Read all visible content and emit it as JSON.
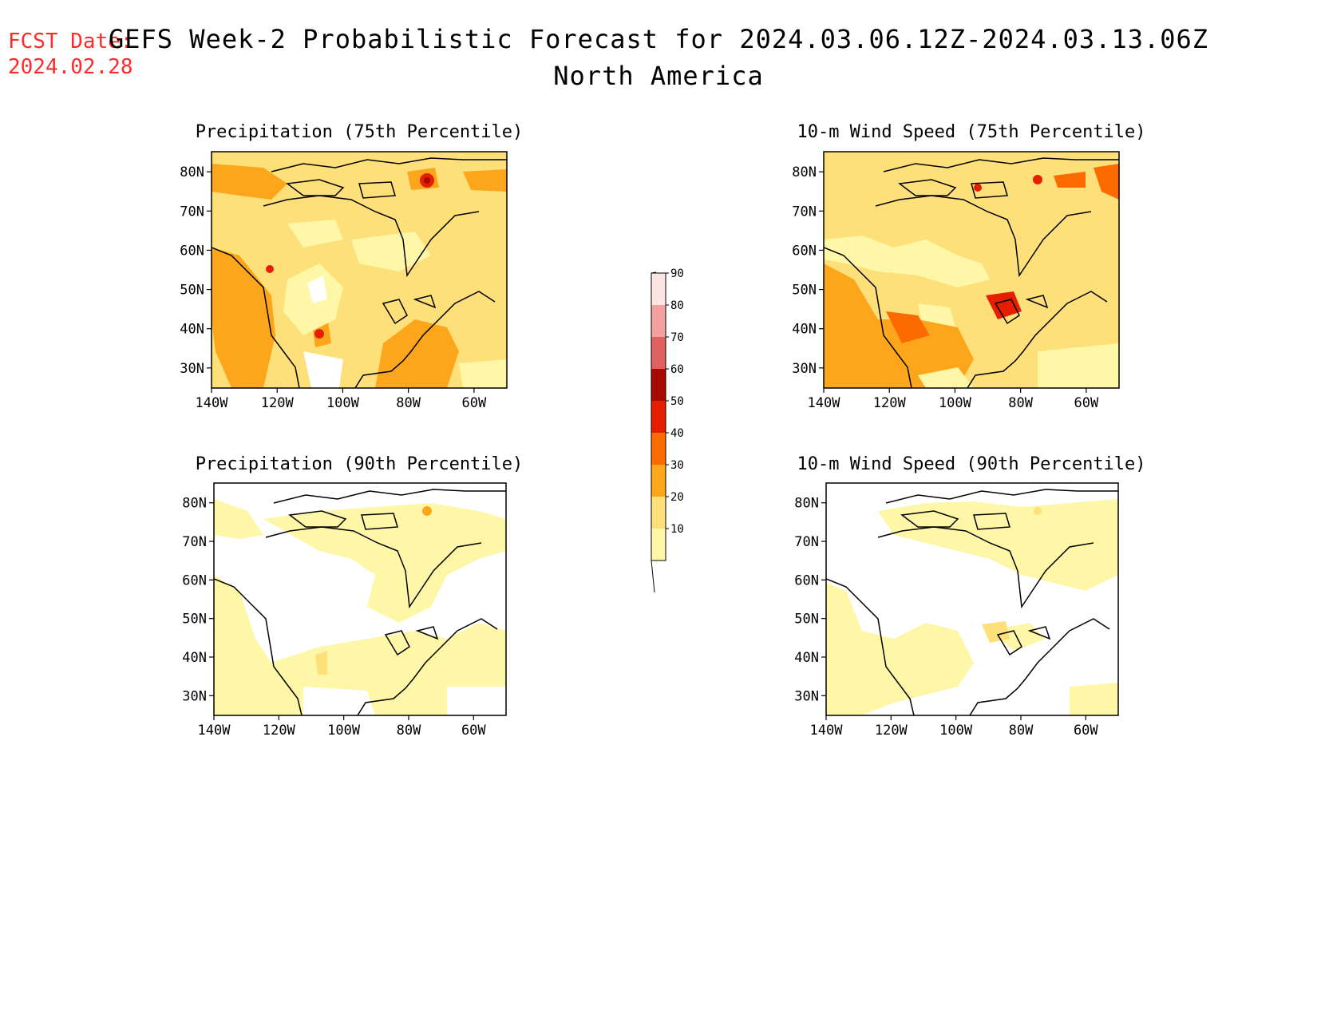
{
  "header": {
    "fcst_label": "FCST Date:",
    "fcst_date": "2024.02.28",
    "title": "GEFS Week-2 Probabilistic Forecast for 2024.03.06.12Z-2024.03.13.06Z",
    "subtitle": "North America"
  },
  "panels": [
    {
      "title": "Precipitation (75th Percentile)"
    },
    {
      "title": "10-m Wind Speed (75th Percentile)"
    },
    {
      "title": "Precipitation (90th Percentile)"
    },
    {
      "title": "10-m Wind Speed (90th Percentile)"
    }
  ],
  "axes": {
    "lat_labels": [
      "80N",
      "70N",
      "60N",
      "50N",
      "40N",
      "30N"
    ],
    "lon_labels": [
      "140W",
      "120W",
      "100W",
      "80W",
      "60W"
    ]
  },
  "colorbar": {
    "levels": [
      "10",
      "20",
      "30",
      "40",
      "50",
      "60",
      "70",
      "80",
      "90"
    ],
    "colors": [
      "#fff7a8",
      "#fde07a",
      "#fda61c",
      "#fd6a00",
      "#e61e00",
      "#a60a00",
      "#e06060",
      "#f5a0a0",
      "#ffe4e4"
    ]
  }
}
